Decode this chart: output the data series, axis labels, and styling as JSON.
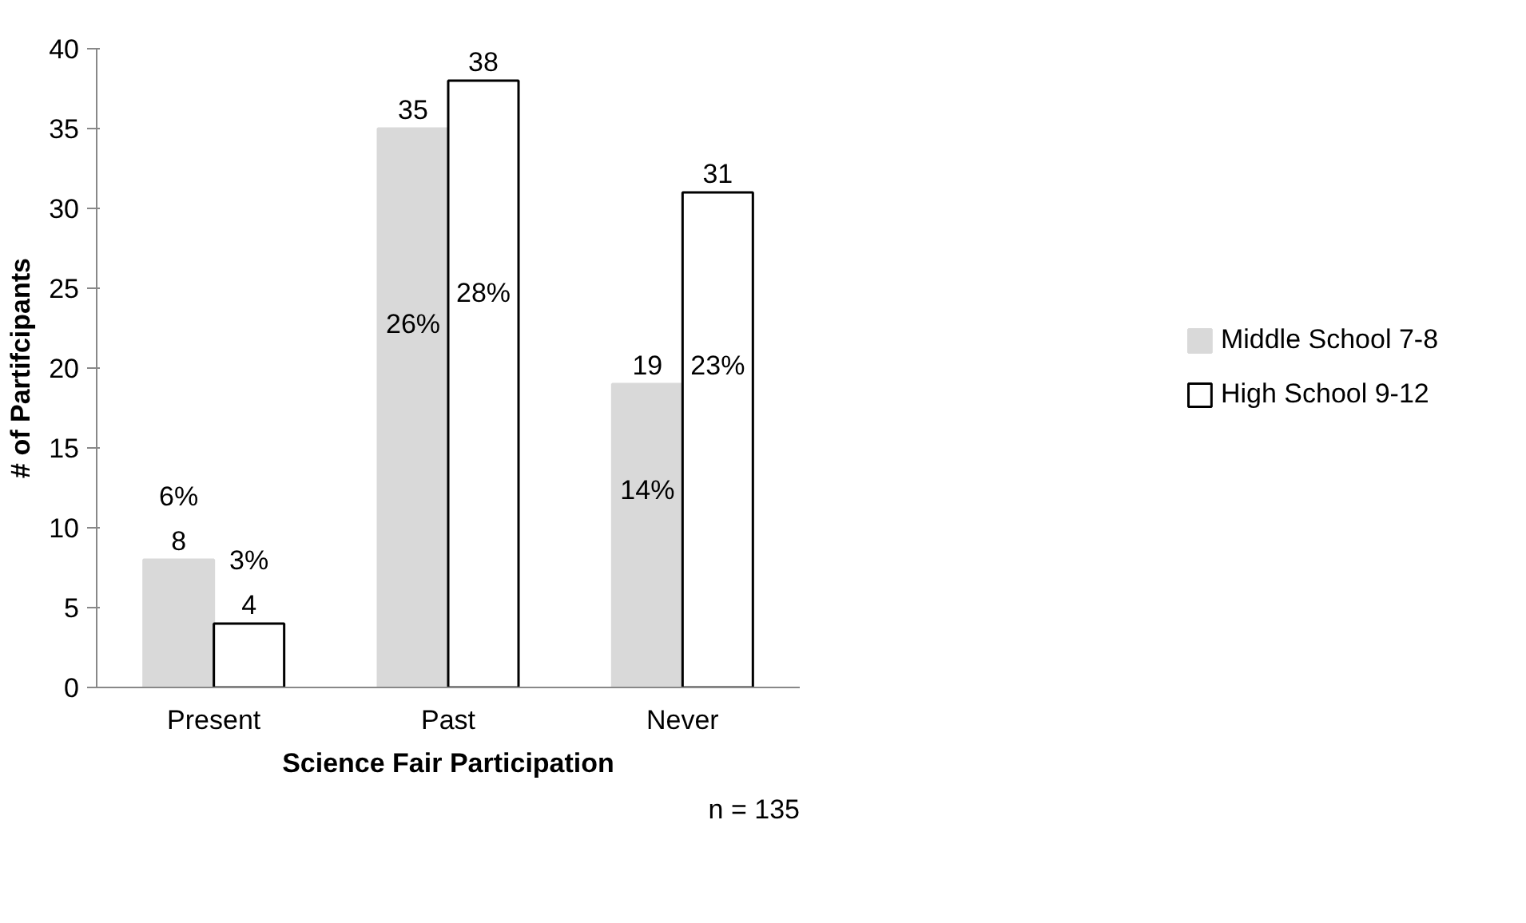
{
  "chart_data": {
    "type": "bar",
    "xlabel": "Science Fair Participation",
    "ylabel": "# of Partifcipants",
    "categories": [
      "Present",
      "Past",
      "Never"
    ],
    "series": [
      {
        "name": "Middle School 7-8",
        "color": "#d9d9d9",
        "values": [
          8,
          35,
          19
        ]
      },
      {
        "name": "High School 9-12",
        "color": "#ffffff",
        "values": [
          4,
          38,
          31
        ]
      }
    ],
    "ylim": [
      0,
      40
    ],
    "yticks": [
      0,
      5,
      10,
      15,
      20,
      25,
      30,
      35,
      40
    ],
    "data_labels": true,
    "grid": false,
    "legend": "right",
    "annotations": [
      "6%",
      "3%",
      "26%",
      "28%",
      "14%",
      "23%",
      "n = 135"
    ]
  }
}
